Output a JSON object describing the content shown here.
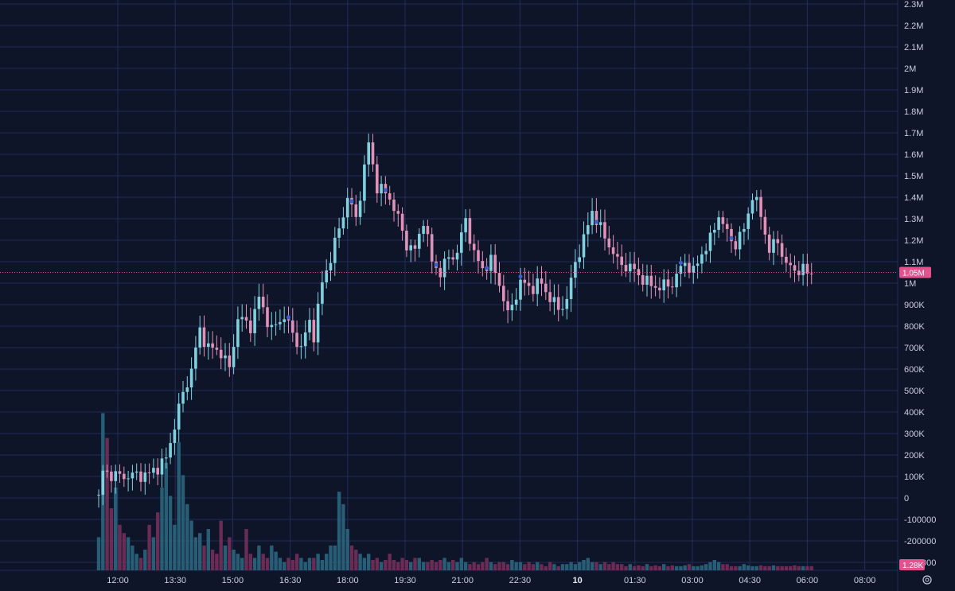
{
  "colors": {
    "background": "#0f1529",
    "grid": "#222c5a",
    "up": "#7fd1e0",
    "down": "#e091b8",
    "vol_up": "#2c6a82",
    "vol_down": "#7a2f5c",
    "marker": "#3a5fd0",
    "price_badge": "#e2528c"
  },
  "chart_data": {
    "type": "candlestick",
    "y_ticks": [
      "2.3M",
      "2.2M",
      "2.1M",
      "2M",
      "1.9M",
      "1.8M",
      "1.7M",
      "1.6M",
      "1.5M",
      "1.4M",
      "1.3M",
      "1.2M",
      "1.1M",
      "1M",
      "900K",
      "800K",
      "700K",
      "600K",
      "500K",
      "400K",
      "300K",
      "200K",
      "100K",
      "0",
      "-100000",
      "-200000",
      "-300000"
    ],
    "y_tick_values": [
      2300000,
      2200000,
      2100000,
      2000000,
      1900000,
      1800000,
      1700000,
      1600000,
      1500000,
      1400000,
      1300000,
      1200000,
      1100000,
      1000000,
      900000,
      800000,
      700000,
      600000,
      500000,
      400000,
      300000,
      200000,
      100000,
      0,
      -100000,
      -200000,
      -300000
    ],
    "ylim": [
      -300000,
      2300000
    ],
    "x_ticks": [
      "12:00",
      "13:30",
      "15:00",
      "16:30",
      "18:00",
      "19:30",
      "21:00",
      "22:30",
      "10",
      "01:30",
      "03:00",
      "04:30",
      "06:00",
      "08:00"
    ],
    "x_tick_bold": [
      false,
      false,
      false,
      false,
      false,
      false,
      false,
      false,
      true,
      false,
      false,
      false,
      false,
      false
    ],
    "current_price_label": "1.05M",
    "current_price": 1050000,
    "current_volume_label": "1.28K",
    "grid": true,
    "price_path": [
      [
        0,
        0
      ],
      [
        1,
        120000
      ],
      [
        5,
        100000
      ],
      [
        12,
        110000
      ],
      [
        16,
        180000
      ],
      [
        19,
        420000
      ],
      [
        22,
        600000
      ],
      [
        24,
        780000
      ],
      [
        26,
        700000
      ],
      [
        29,
        680000
      ],
      [
        31,
        600000
      ],
      [
        33,
        840000
      ],
      [
        36,
        800000
      ],
      [
        38,
        930000
      ],
      [
        41,
        780000
      ],
      [
        44,
        850000
      ],
      [
        46,
        760000
      ],
      [
        48,
        700000
      ],
      [
        50,
        820000
      ],
      [
        51,
        760000
      ],
      [
        53,
        1000000
      ],
      [
        55,
        1120000
      ],
      [
        57,
        1250000
      ],
      [
        59,
        1400000
      ],
      [
        61,
        1300000
      ],
      [
        64,
        1650000
      ],
      [
        66,
        1450000
      ],
      [
        69,
        1400000
      ],
      [
        71,
        1300000
      ],
      [
        73,
        1180000
      ],
      [
        75,
        1150000
      ],
      [
        77,
        1300000
      ],
      [
        79,
        1100000
      ],
      [
        81,
        1050000
      ],
      [
        83,
        1120000
      ],
      [
        85,
        1140000
      ],
      [
        87,
        1300000
      ],
      [
        89,
        1130000
      ],
      [
        91,
        1070000
      ],
      [
        93,
        1100000
      ],
      [
        95,
        1000000
      ],
      [
        97,
        850000
      ],
      [
        100,
        1000000
      ],
      [
        103,
        980000
      ],
      [
        105,
        1000000
      ],
      [
        107,
        930000
      ],
      [
        109,
        880000
      ],
      [
        111,
        920000
      ],
      [
        113,
        1100000
      ],
      [
        115,
        1200000
      ],
      [
        117,
        1340000
      ],
      [
        119,
        1250000
      ],
      [
        121,
        1180000
      ],
      [
        123,
        1100000
      ],
      [
        125,
        1080000
      ],
      [
        127,
        1060000
      ],
      [
        130,
        1000000
      ],
      [
        133,
        980000
      ],
      [
        136,
        1000000
      ],
      [
        139,
        1100000
      ],
      [
        141,
        1050000
      ],
      [
        143,
        1140000
      ],
      [
        145,
        1200000
      ],
      [
        147,
        1320000
      ],
      [
        149,
        1230000
      ],
      [
        151,
        1180000
      ],
      [
        153,
        1250000
      ],
      [
        155,
        1410000
      ],
      [
        157,
        1320000
      ],
      [
        159,
        1150000
      ],
      [
        161,
        1200000
      ],
      [
        163,
        1080000
      ],
      [
        166,
        1060000
      ],
      [
        169,
        1050000
      ]
    ],
    "volume_values": [
      80,
      380,
      320,
      150,
      200,
      110,
      90,
      80,
      60,
      40,
      30,
      50,
      110,
      80,
      140,
      200,
      260,
      180,
      110,
      310,
      230,
      160,
      120,
      80,
      90,
      60,
      100,
      50,
      40,
      120,
      60,
      80,
      50,
      40,
      30,
      100,
      40,
      30,
      60,
      40,
      30,
      60,
      45,
      30,
      20,
      30,
      25,
      40,
      30,
      20,
      30,
      30,
      40,
      25,
      40,
      60,
      60,
      190,
      160,
      100,
      60,
      50,
      40,
      30,
      40,
      25,
      30,
      20,
      25,
      40,
      25,
      20,
      30,
      25,
      20,
      30,
      30,
      20,
      20,
      25,
      20,
      25,
      30,
      20,
      25,
      20,
      30,
      20,
      15,
      20,
      15,
      20,
      30,
      20,
      15,
      20,
      20,
      15,
      25,
      20,
      20,
      15,
      20,
      15,
      20,
      15,
      10,
      20,
      15,
      10,
      15,
      15,
      20,
      15,
      20,
      25,
      30,
      20,
      20,
      15,
      20,
      15,
      20,
      15,
      15,
      10,
      15,
      10,
      12,
      10,
      15,
      10,
      12,
      10,
      15,
      10,
      12,
      10,
      10,
      12,
      15,
      10,
      10,
      12,
      15,
      20,
      25,
      20,
      15,
      15,
      10,
      10,
      10,
      15,
      12,
      10,
      10,
      12,
      10,
      10,
      12,
      10,
      10,
      10,
      10,
      12,
      10,
      10,
      10,
      10
    ]
  }
}
